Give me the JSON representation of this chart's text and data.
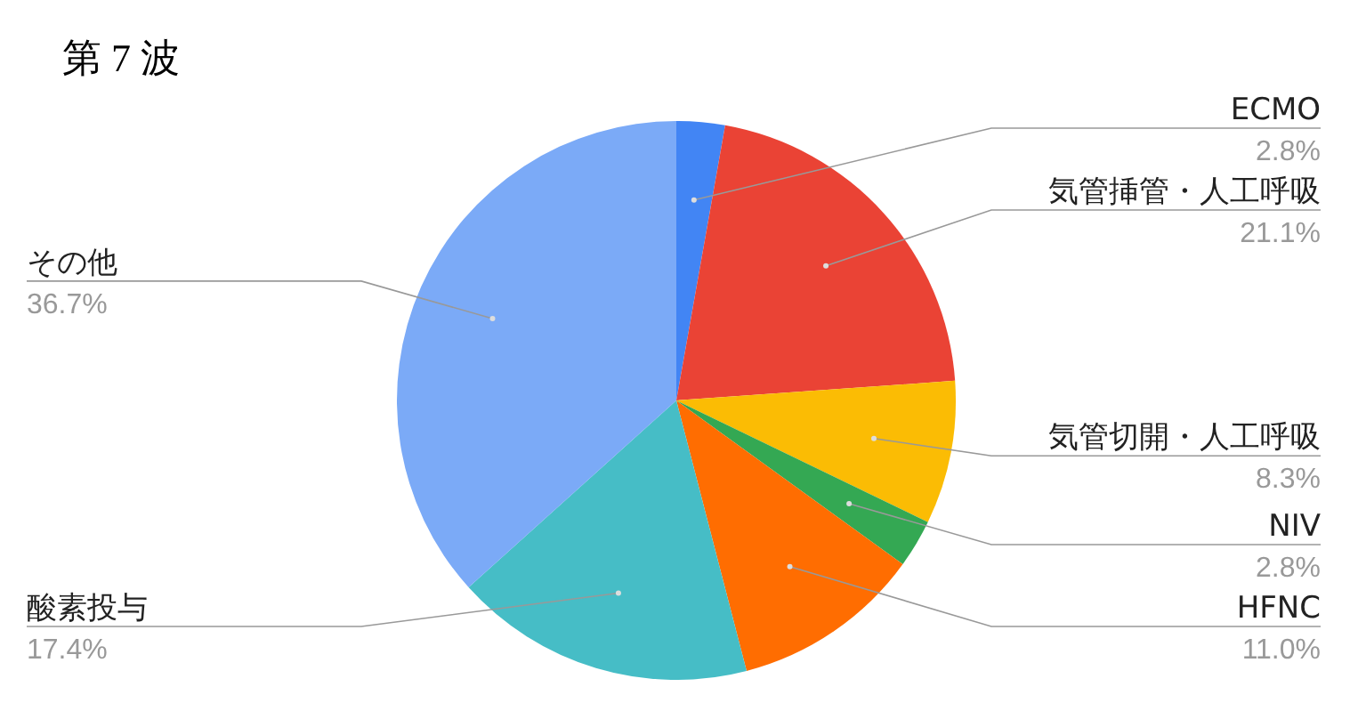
{
  "chart_data": {
    "type": "pie",
    "title": "第 7 波",
    "categories": [
      "ECMO",
      "気管挿管・人工呼吸",
      "気管切開・人工呼吸",
      "NIV",
      "HFNC",
      "酸素投与",
      "その他"
    ],
    "values": [
      2.8,
      21.1,
      8.3,
      2.8,
      11.0,
      17.4,
      36.7
    ],
    "colors": [
      "#4285f4",
      "#ea4335",
      "#fbbc04",
      "#34a853",
      "#ff6d01",
      "#46bdc6",
      "#7baaf7"
    ],
    "value_labels": [
      "2.8%",
      "21.1%",
      "8.3%",
      "2.8%",
      "11.0%",
      "17.4%",
      "36.7%"
    ]
  }
}
